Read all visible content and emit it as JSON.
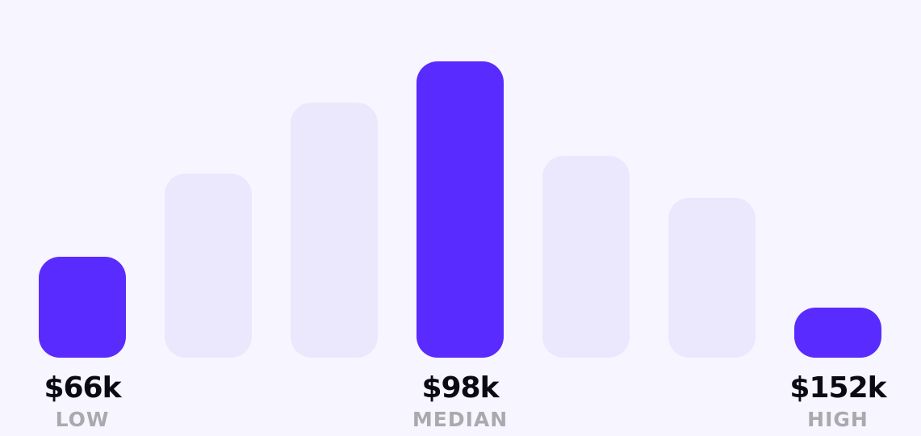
{
  "chart_data": {
    "type": "bar",
    "title": "",
    "xlabel": "",
    "ylabel": "",
    "ylim": [
      0,
      1
    ],
    "grid": false,
    "values_relative": [
      0.34,
      0.62,
      0.86,
      1.0,
      0.68,
      0.54,
      0.17
    ],
    "highlighted": [
      true,
      false,
      false,
      true,
      false,
      false,
      true
    ],
    "annotations": [
      {
        "bar": 0,
        "value": "$66k",
        "label": "LOW"
      },
      {
        "bar": 3,
        "value": "$98k",
        "label": "MEDIAN"
      },
      {
        "bar": 6,
        "value": "$152k",
        "label": "HIGH"
      }
    ],
    "colors": {
      "highlight": "#5a2bff",
      "muted": "#ebe8fd",
      "background": "#f7f5ff",
      "value_text": "#0a0a14",
      "label_text": "#a9a9ae"
    }
  }
}
